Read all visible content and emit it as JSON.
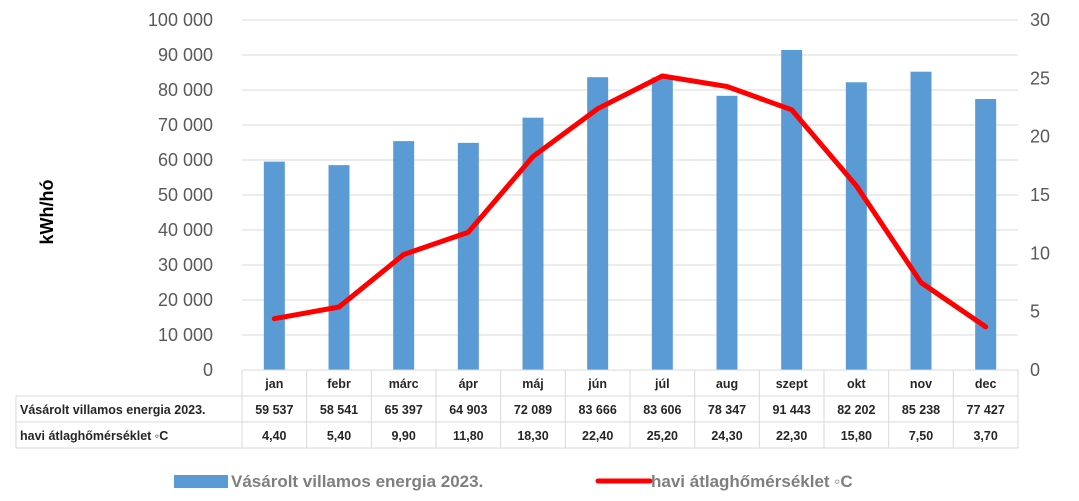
{
  "chart_data": {
    "type": "bar",
    "categories": [
      "jan",
      "febr",
      "márc",
      "ápr",
      "máj",
      "jún",
      "júl",
      "aug",
      "szept",
      "okt",
      "nov",
      "dec"
    ],
    "ylabel": "kWh/hó",
    "ylim": [
      0,
      100000
    ],
    "y2lim": [
      0,
      30
    ],
    "y_ticks": [
      "0",
      "10 000",
      "20 000",
      "30 000",
      "40 000",
      "50 000",
      "60 000",
      "70 000",
      "80 000",
      "90 000",
      "100 000"
    ],
    "y2_ticks": [
      "0",
      "5",
      "10",
      "15",
      "20",
      "25",
      "30"
    ],
    "series": [
      {
        "name": "Vásárolt villamos energia 2023.",
        "kind": "bar",
        "axis": "left",
        "color": "#5b9bd5",
        "values": [
          59537,
          58541,
          65397,
          64903,
          72089,
          83666,
          83606,
          78347,
          91443,
          82202,
          85238,
          77427
        ],
        "labels": [
          "59 537",
          "58 541",
          "65 397",
          "64 903",
          "72 089",
          "83 666",
          "83 606",
          "78 347",
          "91 443",
          "82 202",
          "85 238",
          "77 427"
        ]
      },
      {
        "name": "havi átlaghőmérséklet ◦C",
        "kind": "line",
        "axis": "right",
        "color": "#ff0000",
        "values": [
          4.4,
          5.4,
          9.9,
          11.8,
          18.3,
          22.4,
          25.2,
          24.3,
          22.3,
          15.8,
          7.5,
          3.7
        ],
        "labels": [
          "4,40",
          "5,40",
          "9,90",
          "11,80",
          "18,30",
          "22,40",
          "25,20",
          "24,30",
          "22,30",
          "15,80",
          "7,50",
          "3,70"
        ]
      }
    ],
    "grid": true,
    "legend_position": "bottom",
    "data_table": true
  }
}
